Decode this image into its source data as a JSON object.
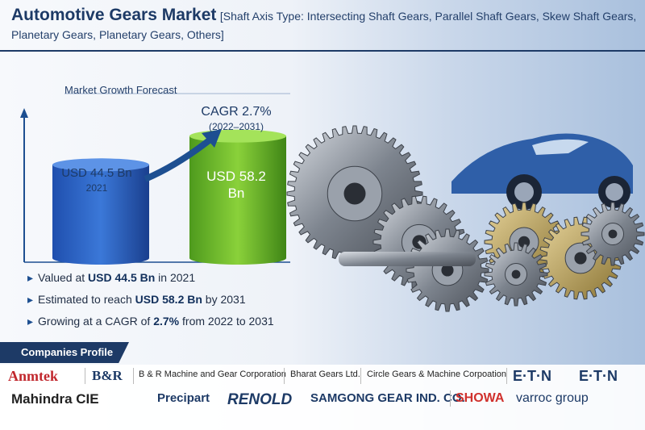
{
  "header": {
    "title": "Automotive Gears Market",
    "subtitle_line1": "[Shaft Axis Type: Intersecting Shaft Gears, Parallel Shaft Gears, Skew Shaft Gears,",
    "subtitle_line2": "Planetary Gears, Planetary Gears, Others]"
  },
  "forecast": {
    "label": "Market Growth Forecast",
    "cagr": "CAGR 2.7%",
    "cagr_period": "(2022–2031)",
    "bars": [
      {
        "label": "USD 44.5 Bn",
        "year": "2021",
        "value": 44.5
      },
      {
        "label": "USD 58.2 Bn",
        "value": 58.2
      }
    ]
  },
  "bullets": [
    [
      "Valued at ",
      "USD 44.5 Bn",
      " in 2021"
    ],
    [
      "Estimated to reach ",
      "USD 58.2 Bn",
      " by 2031"
    ],
    [
      "Growing at a CAGR of ",
      "2.7%",
      " from 2022 to 2031"
    ]
  ],
  "companies": {
    "title": "Companies Profile",
    "row1": [
      "Anmtek",
      "B&R",
      "B & R Machine and Gear Corporation",
      "Bharat Gears Ltd.",
      "Circle Gears & Machine Corpoation",
      "E·T·N",
      "E·T·N"
    ],
    "row2": [
      "Mahindra CIE",
      "Precipart",
      "RENOLD",
      "SAMGONG GEAR IND. CO.",
      "SHOWA",
      "varroc group"
    ]
  }
}
